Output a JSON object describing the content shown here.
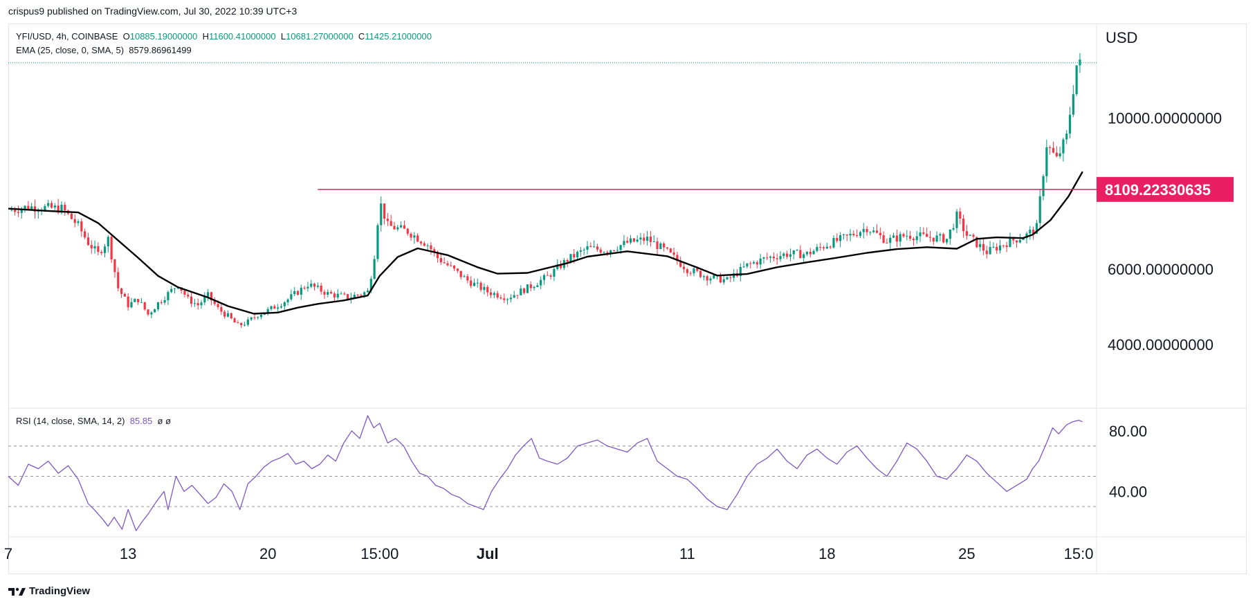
{
  "header": {
    "publisher_line": "crispus9 published on TradingView.com, Jul 30, 2022 10:39 UTC+3"
  },
  "legend": {
    "symbol": "YFI/USD, 4h, COINBASE",
    "open_label": "O",
    "open": "10885.19000000",
    "high_label": "H",
    "high": "11600.41000000",
    "low_label": "L",
    "low": "10681.27000000",
    "close_label": "C",
    "close": "11425.21000000",
    "ema_label": "EMA (25, close, 0, SMA, 5)",
    "ema_value": "8579.86961499",
    "rsi_label": "RSI (14, close, SMA, 14, 2)",
    "rsi_value": "85.85",
    "rsi_extra": "ø  ø"
  },
  "branding": {
    "logo_icon": "tradingview-logo-icon",
    "text": "TradingView"
  },
  "colors": {
    "up": "#089981",
    "down": "#f23645",
    "ema": "#000000",
    "resistance": "#e91e63",
    "rsi": "#7e57c2",
    "grid_dash": "#9598a1"
  },
  "chart_data": [
    {
      "type": "candlestick",
      "title": "YFI/USD, 4h, COINBASE",
      "y_axis_label": "USD",
      "y_ticks": [
        "10000.00000000",
        "6000.00000000",
        "4000.00000000"
      ],
      "y_tick_values": [
        10000,
        6000,
        4000
      ],
      "x_ticks": [
        "7",
        "13",
        "20",
        "15:00",
        "Jul",
        "11",
        "18",
        "25",
        "15:0"
      ],
      "x_tick_days": [
        7,
        13,
        20,
        25.6,
        31,
        41,
        48,
        55,
        60.6
      ],
      "ylim": [
        2320,
        12500
      ],
      "xlim": [
        7,
        61.5
      ],
      "x_unit": "day (Jun 1 = 1, Jul 1 = 31)",
      "resistance": {
        "value": 8109.22330635,
        "label": "8109.22330635",
        "start_day": 22.5
      },
      "last_price": 11425.21,
      "ema_25": {
        "day": [
          7,
          9,
          10.5,
          11.5,
          12.5,
          13.5,
          14.5,
          15.5,
          17,
          18,
          19.3,
          20.5,
          21.5,
          22.5,
          23.8,
          25,
          25.6,
          26.5,
          27.5,
          29,
          30.5,
          31.5,
          33,
          35,
          36,
          38,
          40,
          41.5,
          42.5,
          44,
          45.5,
          47,
          48.5,
          50,
          51.5,
          53,
          54.5,
          55.5,
          56.5,
          57.8,
          58.3,
          59.2,
          60.1,
          60.8
        ],
        "value": [
          7600,
          7540,
          7500,
          7220,
          6760,
          6300,
          5820,
          5520,
          5250,
          5020,
          4820,
          4850,
          4980,
          5080,
          5170,
          5300,
          5820,
          6320,
          6550,
          6370,
          6050,
          5880,
          5900,
          6160,
          6330,
          6470,
          6340,
          6040,
          5830,
          5870,
          6050,
          6180,
          6300,
          6430,
          6530,
          6580,
          6540,
          6800,
          6840,
          6820,
          6910,
          7300,
          7930,
          8580
        ]
      },
      "price_path": {
        "day": [
          7,
          8,
          9,
          9.7,
          10.5,
          11,
          11.5,
          12,
          12.5,
          13,
          13.5,
          14,
          14.5,
          15,
          15.5,
          16,
          16.5,
          17,
          17.5,
          18,
          18.5,
          19,
          19.5,
          20,
          21,
          22,
          23,
          24,
          25,
          25.3,
          25.6,
          26,
          27,
          28,
          28.5,
          29,
          30,
          31,
          32,
          33,
          34,
          35,
          36,
          37,
          38,
          39,
          40,
          41,
          42,
          43,
          44,
          45,
          46,
          47,
          48,
          49,
          50,
          51,
          52,
          53,
          54,
          54.5,
          55,
          56,
          57,
          58,
          58.5,
          59,
          59.5,
          60,
          60.5,
          60.8
        ],
        "value": [
          7550,
          7650,
          7620,
          7600,
          7150,
          6700,
          6400,
          6800,
          5500,
          5050,
          5200,
          4800,
          5100,
          5350,
          5600,
          5200,
          5050,
          5300,
          4950,
          4750,
          4500,
          4600,
          4800,
          4900,
          5200,
          5600,
          5350,
          5250,
          5400,
          6200,
          7800,
          7150,
          7000,
          6650,
          6300,
          6100,
          5700,
          5400,
          5250,
          5500,
          5800,
          6250,
          6550,
          6500,
          6700,
          6800,
          6450,
          6000,
          5800,
          5700,
          6100,
          6300,
          6400,
          6400,
          6650,
          6850,
          7100,
          6750,
          6900,
          6850,
          6800,
          7400,
          6900,
          6450,
          6700,
          6900,
          7100,
          9300,
          8900,
          9500,
          11400,
          11425
        ]
      }
    },
    {
      "type": "line",
      "title": "RSI (14, close, SMA, 14, 2)",
      "y_ticks": [
        "80.00",
        "40.00"
      ],
      "y_tick_values": [
        80,
        40
      ],
      "levels": [
        70,
        50,
        30
      ],
      "ylim": [
        10,
        95
      ],
      "xlim": [
        7,
        61.5
      ],
      "series": [
        {
          "day": [
            7,
            7.5,
            8,
            8.5,
            9,
            9.5,
            10,
            10.5,
            11,
            11.3,
            11.7,
            12,
            12.3,
            12.7,
            13,
            13.4,
            13.7,
            14,
            14.4,
            14.8,
            15,
            15.4,
            15.8,
            16.2,
            16.6,
            17,
            17.4,
            17.8,
            18.2,
            18.6,
            19,
            19.4,
            19.8,
            20.2,
            20.6,
            21,
            21.4,
            21.8,
            22.2,
            22.6,
            23,
            23.4,
            23.8,
            24.2,
            24.6,
            25,
            25.3,
            25.6,
            26,
            26.4,
            26.8,
            27.2,
            27.6,
            28,
            28.4,
            28.8,
            29.2,
            29.6,
            30,
            30.4,
            30.8,
            31.2,
            31.6,
            32,
            32.4,
            32.8,
            33.2,
            33.6,
            34,
            34.5,
            35,
            35.5,
            36,
            36.5,
            37,
            37.5,
            38,
            38.5,
            39,
            39.5,
            40,
            40.5,
            41,
            41.5,
            42,
            42.5,
            43,
            43.5,
            44,
            44.5,
            45,
            45.5,
            46,
            46.5,
            47,
            47.5,
            48,
            48.5,
            49,
            49.5,
            50,
            50.5,
            51,
            51.5,
            52,
            52.5,
            53,
            53.5,
            54,
            54.5,
            55,
            55.5,
            56,
            56.5,
            57,
            57.5,
            58,
            58.3,
            58.6,
            59,
            59.3,
            59.6,
            60,
            60.3,
            60.6,
            60.8
          ],
          "value": [
            50,
            44,
            58,
            55,
            60,
            52,
            57,
            48,
            32,
            28,
            22,
            17,
            23,
            15,
            28,
            14,
            20,
            25,
            33,
            40,
            28,
            50,
            40,
            44,
            38,
            32,
            36,
            45,
            40,
            28,
            45,
            50,
            56,
            60,
            62,
            65,
            58,
            60,
            55,
            58,
            64,
            60,
            72,
            80,
            75,
            90,
            82,
            85,
            72,
            75,
            70,
            60,
            52,
            50,
            44,
            42,
            38,
            36,
            32,
            30,
            28,
            40,
            48,
            55,
            64,
            70,
            75,
            62,
            60,
            58,
            62,
            70,
            72,
            74,
            70,
            68,
            66,
            72,
            75,
            60,
            55,
            50,
            48,
            42,
            35,
            30,
            28,
            38,
            50,
            58,
            62,
            68,
            60,
            55,
            64,
            68,
            62,
            58,
            66,
            70,
            62,
            55,
            50,
            60,
            72,
            68,
            60,
            50,
            48,
            55,
            64,
            60,
            52,
            46,
            40,
            44,
            48,
            55,
            60,
            72,
            82,
            78,
            84,
            86,
            87,
            86
          ]
        }
      ]
    }
  ]
}
